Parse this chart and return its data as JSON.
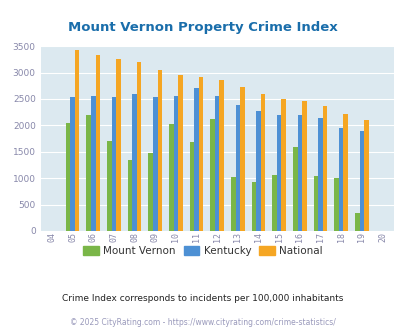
{
  "title": "Mount Vernon Property Crime Index",
  "years": [
    2004,
    2005,
    2006,
    2007,
    2008,
    2009,
    2010,
    2011,
    2012,
    2013,
    2014,
    2015,
    2016,
    2017,
    2018,
    2019,
    2020
  ],
  "mount_vernon": [
    0,
    2050,
    2200,
    1700,
    1350,
    1480,
    2030,
    1680,
    2130,
    1020,
    920,
    1060,
    1600,
    1050,
    1000,
    340,
    0
  ],
  "kentucky": [
    0,
    2530,
    2560,
    2540,
    2600,
    2540,
    2550,
    2700,
    2560,
    2380,
    2270,
    2190,
    2190,
    2140,
    1960,
    1890,
    0
  ],
  "national": [
    0,
    3420,
    3340,
    3260,
    3210,
    3040,
    2950,
    2910,
    2860,
    2730,
    2600,
    2500,
    2470,
    2360,
    2210,
    2110,
    0
  ],
  "mount_vernon_color": "#7ab648",
  "kentucky_color": "#4d90d4",
  "national_color": "#f5a623",
  "bg_color": "#dce9f0",
  "title_color": "#1a6eab",
  "ylabel_max": 3500,
  "subtitle": "Crime Index corresponds to incidents per 100,000 inhabitants",
  "footer": "© 2025 CityRating.com - https://www.cityrating.com/crime-statistics/",
  "legend_labels": [
    "Mount Vernon",
    "Kentucky",
    "National"
  ]
}
